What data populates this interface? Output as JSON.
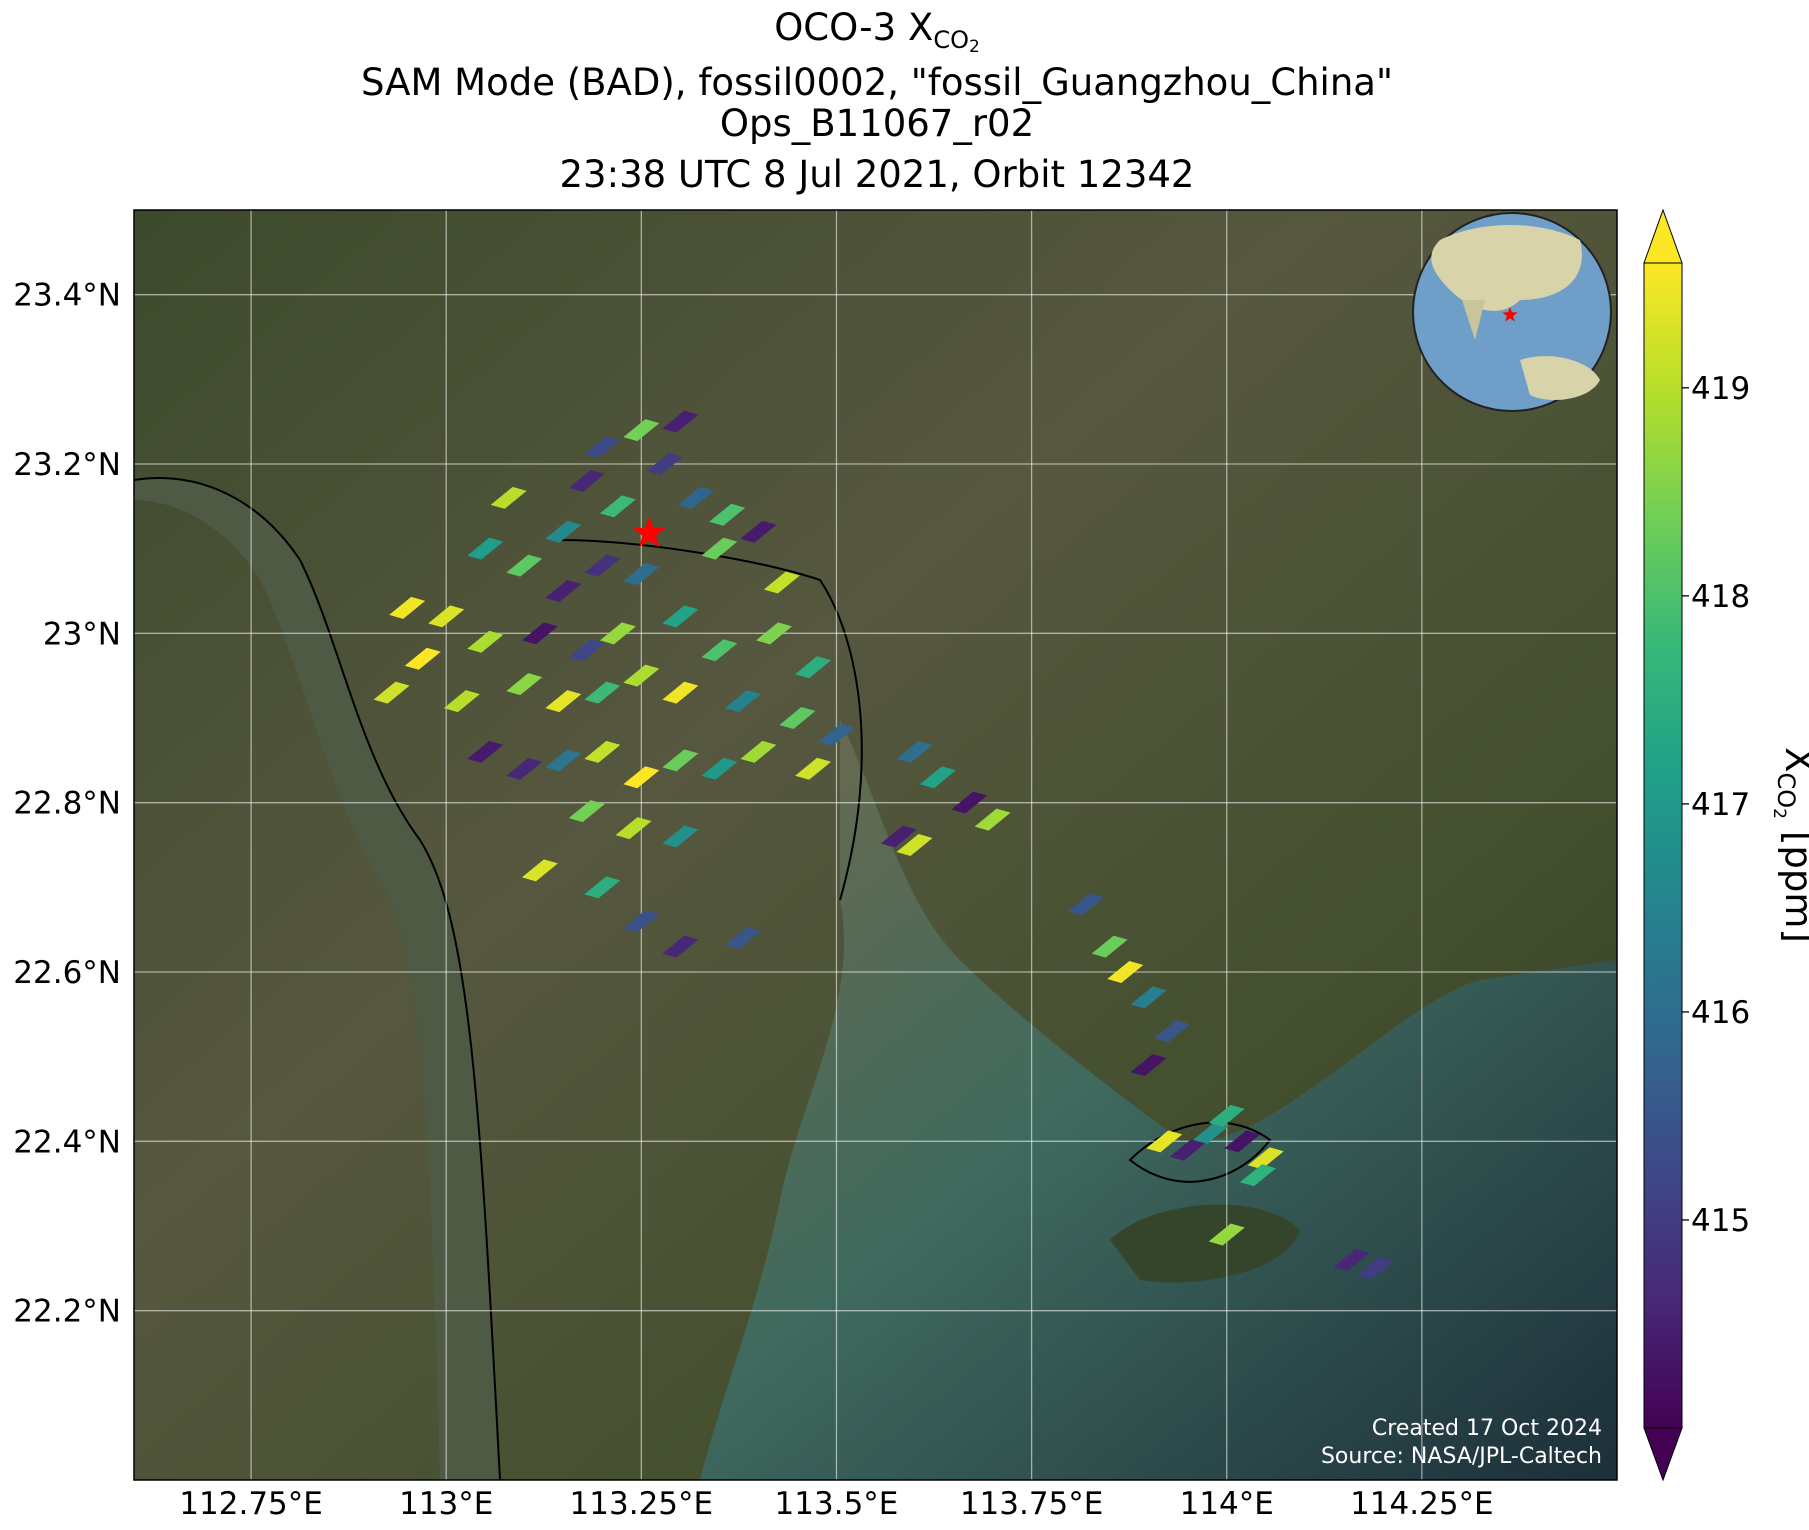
{
  "chart_data": {
    "type": "footprint-map",
    "title": {
      "text": "OCO-3 X",
      "sub": "CO",
      "subsub": "2"
    },
    "subtitle_lines": [
      "SAM Mode (BAD), fossil0002, \"fossil_Guangzhou_China\"",
      "Ops_B11067_r02",
      "23:38 UTC 8 Jul 2021, Orbit 12342"
    ],
    "xlim": [
      112.6,
      114.5
    ],
    "ylim": [
      22.0,
      23.5
    ],
    "xticks": [
      {
        "value": 112.75,
        "label": "112.75°E"
      },
      {
        "value": 113,
        "label": "113°E"
      },
      {
        "value": 113.25,
        "label": "113.25°E"
      },
      {
        "value": 113.5,
        "label": "113.5°E"
      },
      {
        "value": 113.75,
        "label": "113.75°E"
      },
      {
        "value": 114,
        "label": "114°E"
      },
      {
        "value": 114.25,
        "label": "114.25°E"
      }
    ],
    "yticks": [
      {
        "value": 22.2,
        "label": "22.2°N"
      },
      {
        "value": 22.4,
        "label": "22.4°N"
      },
      {
        "value": 22.6,
        "label": "22.6°N"
      },
      {
        "value": 22.8,
        "label": "22.8°N"
      },
      {
        "value": 23,
        "label": "23°N"
      },
      {
        "value": 23.2,
        "label": "23.2°N"
      },
      {
        "value": 23.4,
        "label": "23.4°N"
      }
    ],
    "grid": true,
    "colormap": "viridis",
    "colorbar_lim": [
      414.0,
      419.6
    ],
    "colorbar_ticks": [
      415,
      416,
      417,
      418,
      419
    ],
    "colorbar_extend": "both",
    "colorbar_label": {
      "symbol": "X",
      "sub": "CO",
      "subsub": "2",
      "unit": "[ppm]"
    },
    "target": {
      "lon": 113.26,
      "lat": 23.118,
      "color": "#ff0000"
    },
    "footprints": {
      "lon": [
        112.95,
        113.0,
        112.97,
        113.05,
        112.93,
        113.02,
        113.1,
        113.15,
        113.2,
        113.25,
        113.12,
        113.18,
        113.22,
        113.3,
        113.35,
        113.42,
        113.47,
        113.1,
        113.15,
        113.2,
        113.25,
        113.3,
        113.38,
        113.45,
        113.5,
        113.05,
        113.1,
        113.15,
        113.2,
        113.25,
        113.3,
        113.35,
        113.4,
        113.47,
        113.18,
        113.24,
        113.3,
        113.12,
        113.2,
        113.25,
        113.3,
        113.38,
        113.22,
        113.28,
        113.3,
        113.32,
        113.36,
        113.4,
        113.25,
        113.2,
        113.15,
        113.08,
        113.05,
        113.18,
        113.35,
        113.43,
        113.6,
        113.63,
        113.67,
        113.7,
        113.58,
        113.6,
        113.82,
        113.85,
        113.87,
        113.9,
        113.93,
        113.9,
        113.92,
        113.95,
        113.98,
        114.0,
        114.02,
        114.05,
        114.04,
        114.0,
        114.16,
        114.19
      ],
      "lat": [
        23.03,
        23.02,
        22.97,
        22.99,
        22.93,
        22.92,
        23.08,
        23.05,
        23.08,
        23.07,
        23.0,
        22.98,
        23.0,
        23.02,
        22.98,
        23.0,
        22.96,
        22.94,
        22.92,
        22.93,
        22.95,
        22.93,
        22.92,
        22.9,
        22.88,
        22.86,
        22.84,
        22.85,
        22.86,
        22.83,
        22.85,
        22.84,
        22.86,
        22.84,
        22.79,
        22.77,
        22.76,
        22.72,
        22.7,
        22.66,
        22.63,
        22.64,
        23.15,
        23.2,
        23.25,
        23.16,
        23.14,
        23.12,
        23.24,
        23.22,
        23.12,
        23.16,
        23.1,
        23.18,
        23.1,
        23.06,
        22.86,
        22.83,
        22.8,
        22.78,
        22.76,
        22.75,
        22.68,
        22.63,
        22.6,
        22.57,
        22.53,
        22.49,
        22.4,
        22.39,
        22.41,
        22.43,
        22.4,
        22.38,
        22.36,
        22.29,
        22.26,
        22.25
      ],
      "xco2": [
        419.5,
        419.3,
        419.6,
        418.9,
        419.2,
        419.0,
        418.2,
        414.5,
        414.8,
        416.0,
        414.3,
        415.2,
        418.7,
        417.2,
        418.0,
        418.5,
        417.5,
        418.6,
        419.4,
        417.8,
        418.9,
        419.5,
        416.5,
        418.2,
        415.8,
        414.4,
        414.6,
        416.2,
        419.1,
        419.6,
        418.3,
        417.0,
        418.8,
        419.2,
        418.4,
        419.0,
        416.8,
        419.3,
        417.5,
        415.4,
        414.6,
        415.5,
        417.8,
        415.0,
        414.5,
        415.8,
        418.0,
        414.4,
        418.4,
        415.3,
        416.7,
        419.0,
        417.1,
        414.6,
        418.3,
        419.1,
        416.0,
        417.2,
        414.3,
        418.8,
        414.5,
        419.2,
        415.5,
        418.3,
        419.5,
        416.4,
        415.5,
        414.3,
        419.4,
        414.5,
        416.8,
        417.5,
        414.3,
        419.3,
        417.6,
        418.7,
        414.6,
        415.0
      ]
    },
    "credits": [
      "Created 17 Oct 2024",
      "Source: NASA/JPL-Caltech"
    ]
  }
}
